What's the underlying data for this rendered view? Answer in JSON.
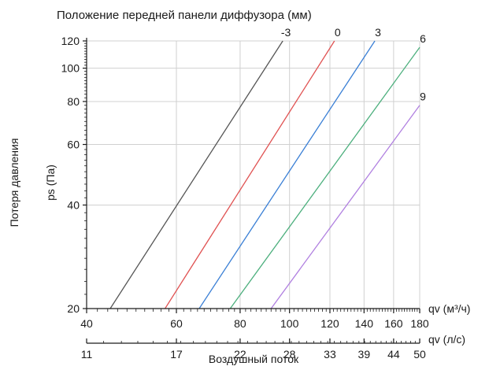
{
  "chart_data": {
    "type": "line",
    "title": "Положение передней панели диффузора (мм)",
    "ylabel_outer": "Потеря давления",
    "ylabel": "ps (Па)",
    "xlabel": "Воздушный поток",
    "x_axis": {
      "unit_label": "qv (м³/ч)",
      "scale": "log",
      "range": [
        40,
        180
      ],
      "ticks": [
        40,
        60,
        80,
        100,
        120,
        140,
        160,
        180
      ]
    },
    "x2_axis": {
      "unit_label": "qv (л/с)",
      "scale": "log",
      "tick_labels": [
        "11",
        "17",
        "22",
        "28",
        "33",
        "39",
        "44",
        "50"
      ]
    },
    "y_axis": {
      "scale": "log",
      "range": [
        20,
        120
      ],
      "ticks": [
        20,
        40,
        60,
        80,
        100,
        120
      ]
    },
    "grid": true,
    "series": [
      {
        "name": "-3",
        "color": "#555555",
        "x": [
          44.5,
          97.0
        ],
        "y": [
          20,
          120
        ]
      },
      {
        "name": "0",
        "color": "#e05252",
        "x": [
          57.0,
          122.5
        ],
        "y": [
          20,
          120
        ]
      },
      {
        "name": "3",
        "color": "#3a7fd5",
        "x": [
          66.5,
          147.0
        ],
        "y": [
          20,
          120
        ]
      },
      {
        "name": "6",
        "color": "#4caf7d",
        "x": [
          76.5,
          180.0
        ],
        "y": [
          20,
          115
        ]
      },
      {
        "name": "9",
        "color": "#b07fe0",
        "x": [
          92.0,
          180.0
        ],
        "y": [
          20,
          78
        ]
      }
    ]
  }
}
